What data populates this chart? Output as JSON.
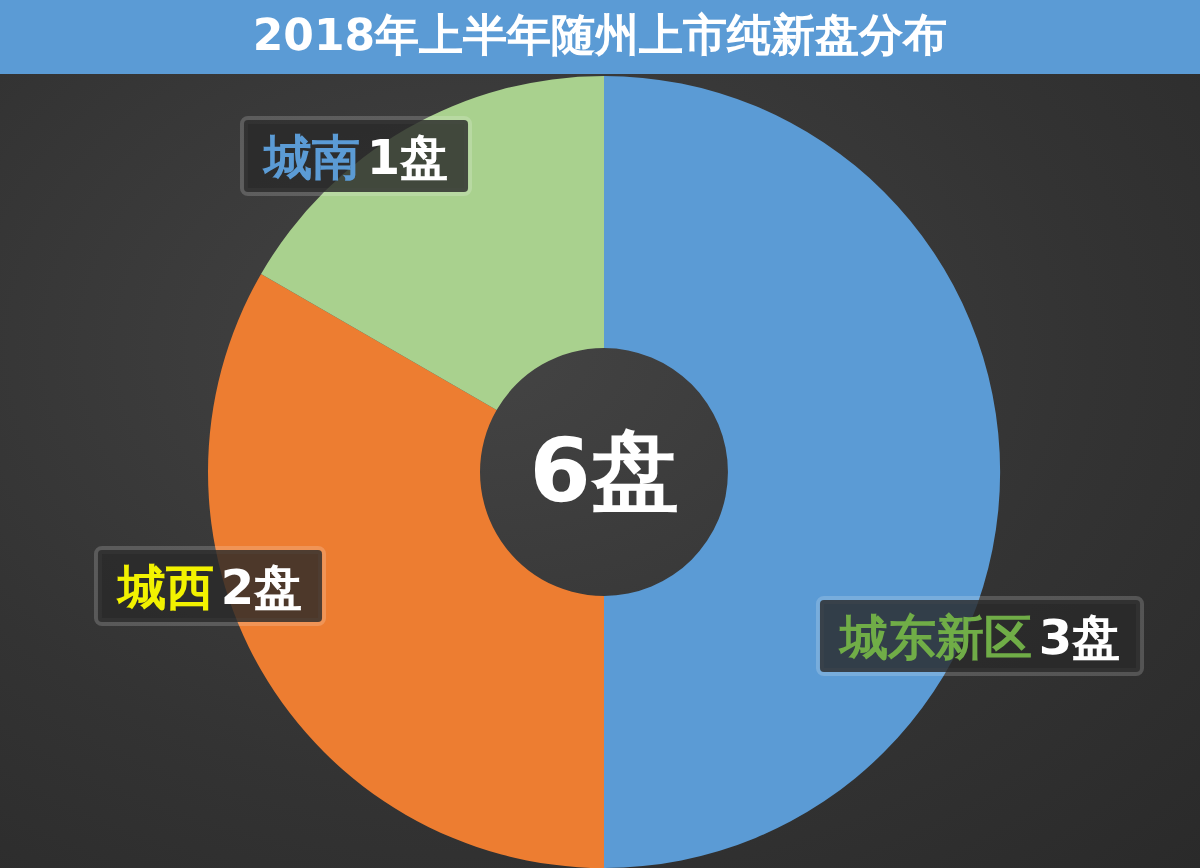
{
  "chart_data": {
    "type": "donut",
    "title": "2018年上半年随州上市纯新盘分布",
    "categories": [
      "城东新区",
      "城西",
      "城南"
    ],
    "values": [
      3,
      2,
      1
    ],
    "colors": [
      "#5b9bd5",
      "#ed7d31",
      "#a9d18e"
    ],
    "value_labels": [
      "3盘",
      "2盘",
      "1盘"
    ],
    "annotations": [
      "6盘"
    ]
  }
}
